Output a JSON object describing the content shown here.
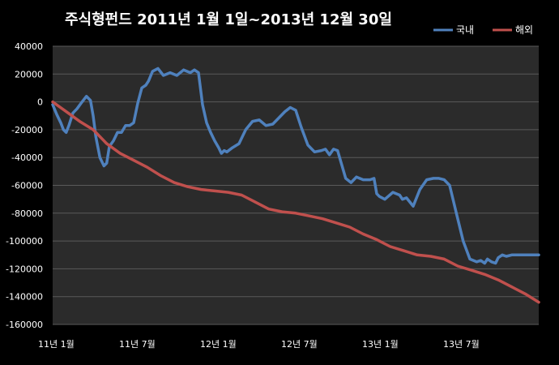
{
  "chart_data": {
    "type": "line",
    "title": "주식형펀드    2011년 1월 1일~2013년 12월 30일",
    "xlabel": "",
    "ylabel": "",
    "x_tick_labels": [
      "11년 1월",
      "11년 7월",
      "12년 1월",
      "12년 7월",
      "13년 1월",
      "13년 7월"
    ],
    "x_tick_positions_month": [
      0,
      6,
      12,
      18,
      24,
      30
    ],
    "xlim_month": [
      0,
      36
    ],
    "ylim": [
      -160000,
      40000
    ],
    "y_ticks": [
      40000,
      20000,
      0,
      -20000,
      -40000,
      -60000,
      -80000,
      -100000,
      -120000,
      -140000,
      -160000
    ],
    "y_tick_labels": [
      "40000",
      "20000",
      "0",
      "-20000",
      "-40000",
      "-60000",
      "-80000",
      "-100000",
      "-120000",
      "-140000",
      "-160000"
    ],
    "grid": true,
    "legend": "top-right",
    "series": [
      {
        "name": "국내",
        "color": "#4f81bd",
        "x_month": [
          0,
          0.3,
          0.6,
          0.8,
          1.0,
          1.2,
          1.5,
          1.8,
          2.1,
          2.5,
          2.8,
          3.0,
          3.2,
          3.5,
          3.8,
          4.0,
          4.2,
          4.5,
          4.8,
          5.1,
          5.4,
          5.7,
          6.0,
          6.3,
          6.6,
          6.9,
          7.1,
          7.4,
          7.8,
          8.2,
          8.7,
          9.2,
          9.7,
          10.2,
          10.5,
          10.8,
          11.1,
          11.4,
          11.7,
          12.0,
          12.3,
          12.5,
          12.7,
          12.9,
          13.3,
          13.8,
          14.3,
          14.8,
          15.3,
          15.8,
          16.3,
          16.8,
          17.2,
          17.6,
          18.0,
          18.4,
          18.9,
          19.4,
          19.9,
          20.2,
          20.5,
          20.8,
          21.1,
          21.4,
          21.7,
          22.1,
          22.5,
          23.0,
          23.5,
          23.8,
          24.0,
          24.2,
          24.6,
          25.2,
          25.7,
          25.9,
          26.2,
          26.7,
          27.2,
          27.7,
          28.2,
          28.6,
          29.0,
          29.4,
          29.9,
          30.4,
          30.9,
          31.4,
          31.7,
          32.0,
          32.2,
          32.5,
          32.8,
          33.0,
          33.3,
          33.6,
          34.0,
          34.4,
          34.8,
          35.2,
          35.6,
          36.0
        ],
        "y": [
          -2000,
          -9000,
          -15000,
          -20000,
          -22000,
          -17000,
          -8000,
          -5000,
          -1000,
          4000,
          1000,
          -10000,
          -25000,
          -40000,
          -46000,
          -44000,
          -32000,
          -28000,
          -22000,
          -22000,
          -17000,
          -17000,
          -15000,
          -1000,
          10000,
          12000,
          15000,
          22000,
          24000,
          19000,
          21000,
          19000,
          23000,
          21000,
          23000,
          21000,
          -2000,
          -15000,
          -22000,
          -28000,
          -33000,
          -37000,
          -35000,
          -36000,
          -33000,
          -30000,
          -20000,
          -14000,
          -13000,
          -17000,
          -16000,
          -11000,
          -7000,
          -4000,
          -6000,
          -18000,
          -31000,
          -36000,
          -35000,
          -34000,
          -38000,
          -34000,
          -35000,
          -45000,
          -55000,
          -58000,
          -54000,
          -56000,
          -56000,
          -55000,
          -66000,
          -68000,
          -70000,
          -65000,
          -67000,
          -70000,
          -69000,
          -75000,
          -63000,
          -56000,
          -55000,
          -55000,
          -56000,
          -60000,
          -80000,
          -100000,
          -113000,
          -115000,
          -114000,
          -116000,
          -113000,
          -115000,
          -116000,
          -112000,
          -110000,
          -111000,
          -110000,
          -110000,
          -110000,
          -110000,
          -110000,
          -110000
        ],
        "y_note": "values sampled"
      },
      {
        "name": "해외",
        "color": "#c0504d",
        "x_month": [
          0,
          1,
          2,
          3,
          4,
          5,
          6,
          7,
          8,
          9,
          10,
          11,
          12,
          13,
          14,
          15,
          16,
          17,
          18,
          19,
          20,
          21,
          22,
          23,
          24,
          25,
          26,
          27,
          28,
          29,
          30,
          31,
          32,
          33,
          34,
          35,
          36
        ],
        "y": [
          0,
          -7000,
          -14000,
          -20000,
          -30000,
          -37000,
          -42000,
          -47000,
          -53000,
          -58000,
          -61000,
          -63000,
          -64000,
          -65000,
          -67000,
          -72000,
          -77000,
          -79000,
          -80000,
          -82000,
          -84000,
          -87000,
          -90000,
          -95000,
          -99000,
          -104000,
          -107000,
          -110000,
          -111000,
          -113000,
          -118000,
          -121000,
          -124000,
          -128000,
          -133000,
          -138000,
          -144000
        ]
      }
    ]
  }
}
